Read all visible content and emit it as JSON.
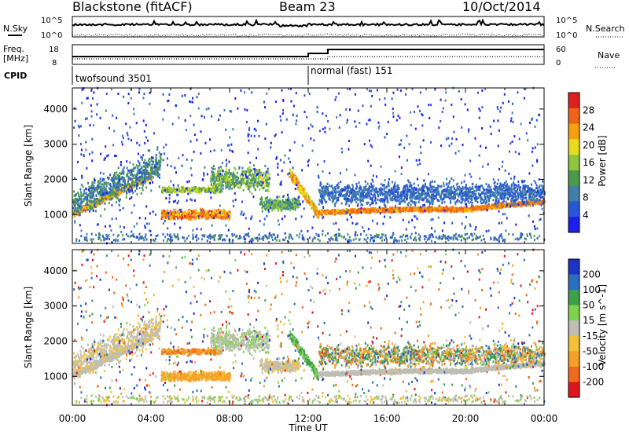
{
  "header": {
    "title_left": "Blackstone (fitACF)",
    "title_center": "Beam 23",
    "title_right": "10/Oct/2014"
  },
  "top_panels": {
    "nsky_label": "N.Sky",
    "nsearch_label": "N.Search",
    "noise_ticks_left": [
      "10^5",
      "10^0"
    ],
    "noise_ticks_right": [
      "10^5",
      "10^0"
    ],
    "freq_label_line1": "Freq.",
    "freq_label_line2": "[MHz]",
    "freq_ticks": [
      "18",
      "8"
    ],
    "nave_label": "Nave",
    "nave_ticks": [
      "60",
      "0"
    ],
    "cpid_label": "CPID",
    "cpid_segments": [
      {
        "label": "twofsound 3501",
        "start_hour": 0,
        "end_hour": 12
      },
      {
        "label": "normal (fast) 151",
        "start_hour": 12,
        "end_hour": 24
      }
    ]
  },
  "axes": {
    "xlabel": "Time UT",
    "ylabel": "Slant Range [km]",
    "x_ticks": [
      "00:00",
      "04:00",
      "08:00",
      "12:00",
      "16:00",
      "20:00",
      "00:00"
    ],
    "y_ticks": [
      "1000",
      "2000",
      "3000",
      "4000"
    ]
  },
  "chart_data": [
    {
      "type": "heatmap",
      "title": "",
      "xlabel": "Time UT",
      "ylabel": "Slant Range [km]",
      "x_range_hours": [
        0,
        24
      ],
      "y_range_km": [
        180,
        4600
      ],
      "colorbar": {
        "label": "Power [dB]",
        "ticks": [
          "4",
          "8",
          "12",
          "16",
          "20",
          "24",
          "28"
        ],
        "range": [
          0,
          30
        ],
        "colors": [
          "#1e1ef0",
          "#2a55d6",
          "#3f7fa8",
          "#4e9a4c",
          "#8ec63f",
          "#e8dc1e",
          "#f5a00f",
          "#f0641a",
          "#e0201e"
        ]
      }
    },
    {
      "type": "heatmap",
      "title": "",
      "xlabel": "Time UT",
      "ylabel": "Slant Range [km]",
      "x_range_hours": [
        0,
        24
      ],
      "y_range_km": [
        180,
        4600
      ],
      "colorbar": {
        "label": "Velocity [m s^-1]",
        "ticks": [
          "200",
          "100",
          "50",
          "15",
          "-15",
          "-50",
          "-100",
          "-200"
        ],
        "range": [
          -250,
          250
        ],
        "colors": [
          "#1e32c8",
          "#2a6fbe",
          "#3fa04a",
          "#7fd24e",
          "#bebeb4",
          "#f2c23a",
          "#f5a028",
          "#f06a1e",
          "#e0141e"
        ]
      }
    }
  ]
}
